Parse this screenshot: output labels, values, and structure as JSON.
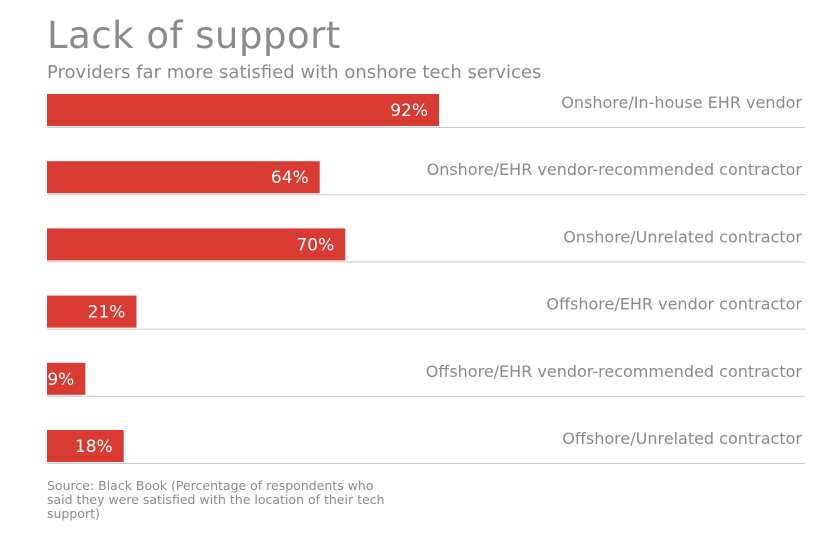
{
  "title": "Lack of support",
  "subtitle": "Providers far more satisfied with onshore tech services",
  "source": "Source: Black Book (Percentage of respondents who said they were satisfied with the location of their tech support)",
  "colors": {
    "bar": "#d93b33",
    "separator": "#c8c8c8",
    "text": "#8a8a8a"
  },
  "chart_data": {
    "type": "bar",
    "orientation": "horizontal",
    "title": "Lack of support",
    "subtitle": "Providers far more satisfied with onshore tech services",
    "categories": [
      "Onshore/In-house EHR vendor",
      "Onshore/EHR vendor-recommended contractor",
      "Onshore/Unrelated contractor",
      "Offshore/EHR vendor contractor",
      "Offshore/EHR vendor-recommended contractor",
      "Offshore/Unrelated contractor"
    ],
    "values": [
      92,
      64,
      70,
      21,
      9,
      18
    ],
    "labels": [
      "92%",
      "64%",
      "70%",
      "21%",
      "9%",
      "18%"
    ],
    "unit": "%",
    "xlim": [
      0,
      100
    ],
    "grid": false,
    "legend": "none"
  }
}
